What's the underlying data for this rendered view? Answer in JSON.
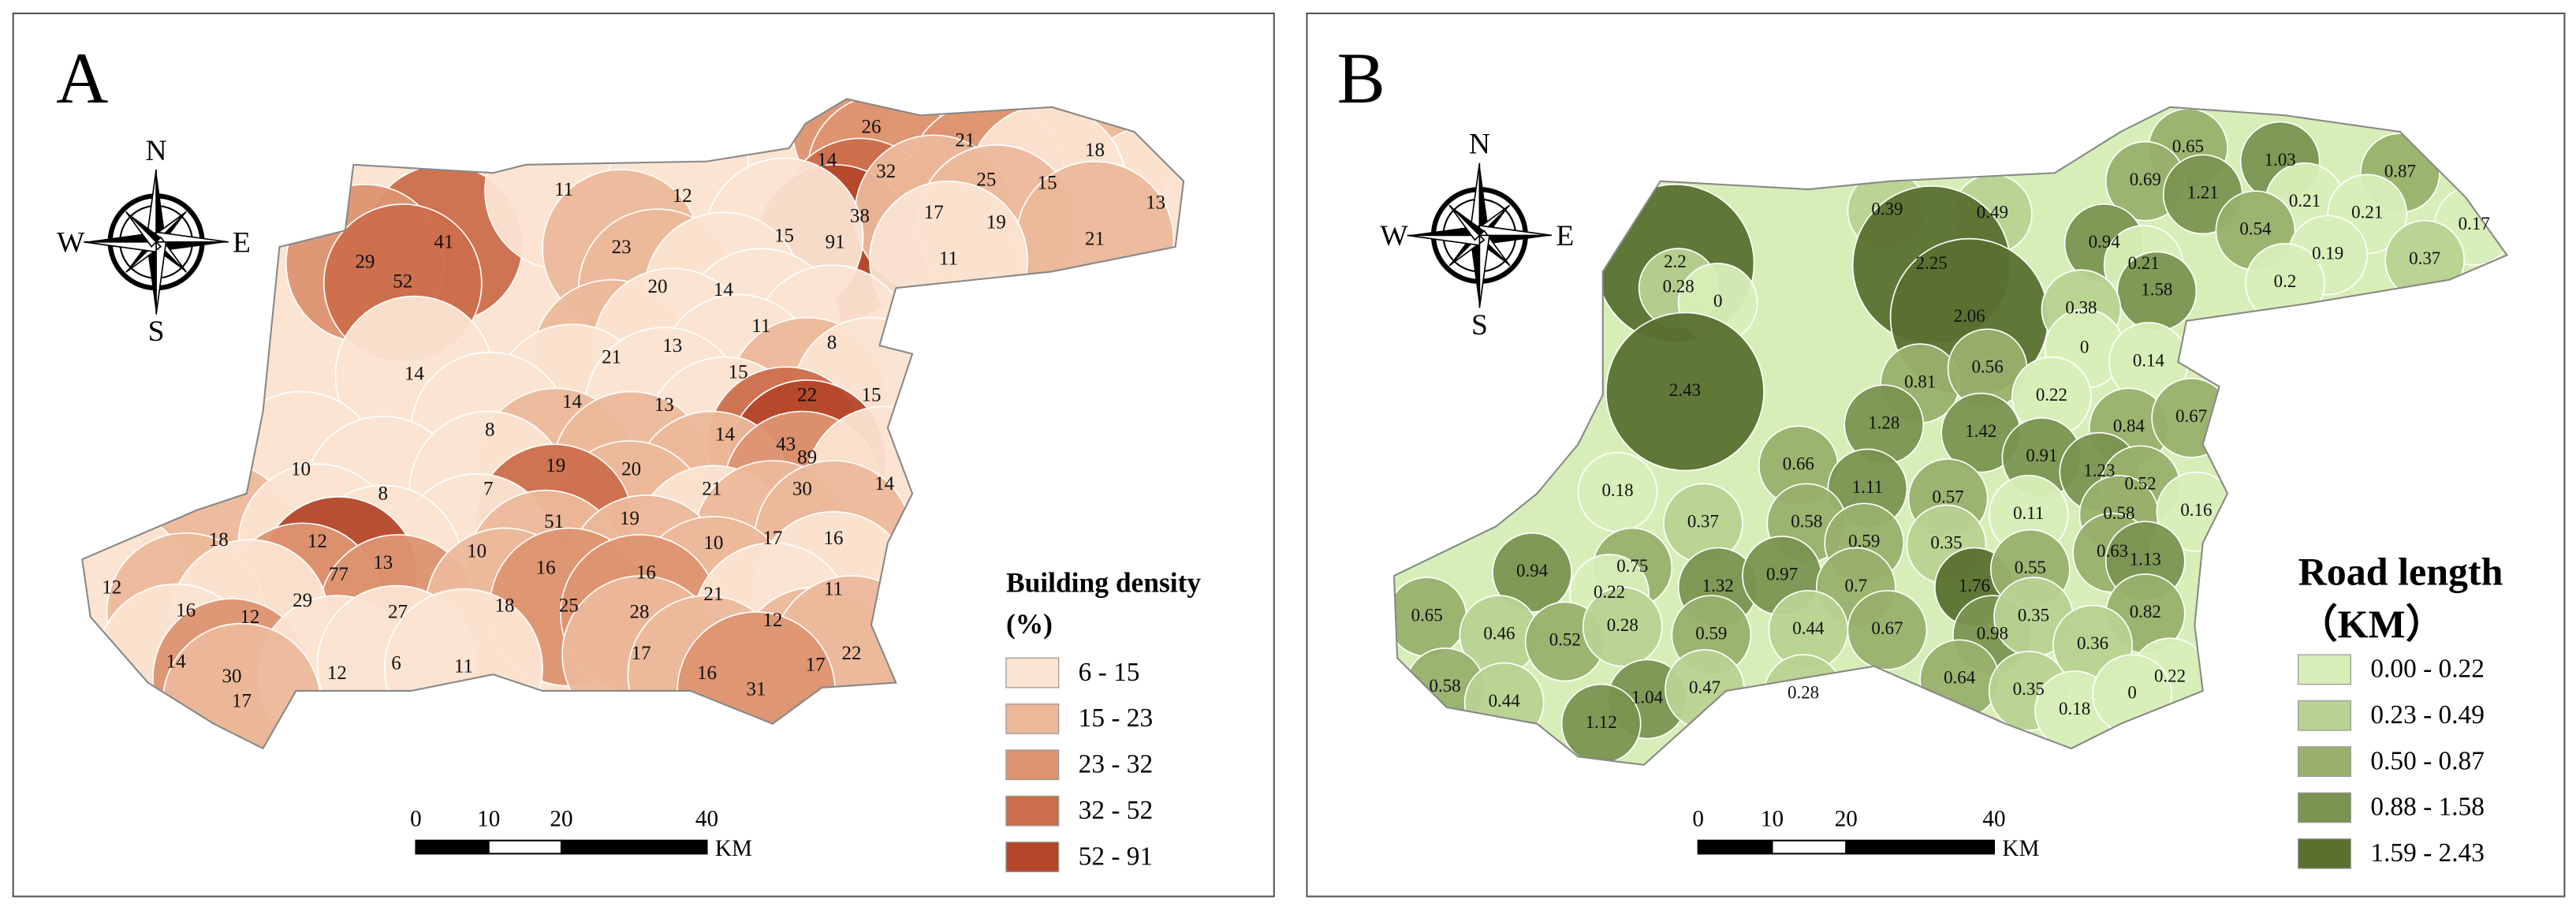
{
  "panels": [
    {
      "label": "A",
      "compass": {
        "n": "N",
        "s": "S",
        "w": "W",
        "e": "E"
      },
      "regions": [
        41,
        29,
        52,
        11,
        12,
        14,
        26,
        21,
        18,
        13,
        32,
        25,
        15,
        38,
        91,
        17,
        19,
        21,
        15,
        23,
        11,
        20,
        14,
        11,
        8,
        14,
        21,
        13,
        15,
        22,
        15,
        14,
        13,
        8,
        14,
        43,
        89,
        10,
        19,
        20,
        21,
        30,
        14,
        8,
        7,
        19,
        51,
        18,
        12,
        10,
        10,
        17,
        16,
        13,
        16,
        16,
        21,
        11,
        12,
        77,
        29,
        27,
        16,
        12,
        18,
        25,
        28,
        12,
        14,
        17,
        17,
        22,
        30,
        12,
        6,
        11,
        16,
        31,
        17
      ],
      "legend": {
        "title": "Building density",
        "unit": "(%)",
        "classes": [
          {
            "label": "6 - 15",
            "color": "#fbe4d2"
          },
          {
            "label": "15 - 23",
            "color": "#ecb89a"
          },
          {
            "label": "23 - 32",
            "color": "#dd9371"
          },
          {
            "label": "32 - 52",
            "color": "#cc6e4c"
          },
          {
            "label": "52 - 91",
            "color": "#b4472a"
          }
        ]
      },
      "scale": {
        "ticks": [
          0,
          10,
          20,
          40
        ],
        "unit": "KM"
      }
    },
    {
      "label": "B",
      "compass": {
        "n": "N",
        "s": "S",
        "w": "W",
        "e": "E"
      },
      "regions": [
        0.65,
        1.03,
        0.87,
        0.69,
        1.21,
        0.21,
        0.21,
        0.17,
        0.39,
        0.49,
        0.94,
        0.54,
        0.19,
        0.37,
        0.21,
        1.58,
        0.2,
        2.2,
        2.25,
        0.28,
        0,
        2.06,
        0.38,
        0,
        0.14,
        0.81,
        0.56,
        2.43,
        0.22,
        1.28,
        1.42,
        0.84,
        0.67,
        0.66,
        0.91,
        1.23,
        0.52,
        0.18,
        1.11,
        0.57,
        0.11,
        0.58,
        0.16,
        0.37,
        0.58,
        0.59,
        0.35,
        0.63,
        1.13,
        0.94,
        0.75,
        1.76,
        0.55,
        0.22,
        1.32,
        0.97,
        0.7,
        0.65,
        0.46,
        0.52,
        0.28,
        0.59,
        0.44,
        0.67,
        0.98,
        0.35,
        0.82,
        0.36,
        0.58,
        0.44,
        1.04,
        0.47,
        0.28,
        0.64,
        0.35,
        0.22,
        0.18,
        0,
        1.12
      ],
      "legend": {
        "title": "Road length",
        "unit": "（KM）",
        "classes": [
          {
            "label": "0.00 - 0.22",
            "color": "#d8eeb8"
          },
          {
            "label": "0.23 - 0.49",
            "color": "#b8d291"
          },
          {
            "label": "0.50 - 0.87",
            "color": "#98b06c"
          },
          {
            "label": "0.88 - 1.58",
            "color": "#7a9350"
          },
          {
            "label": "1.59 - 2.43",
            "color": "#59702f"
          }
        ]
      },
      "scale": {
        "ticks": [
          0,
          10,
          20,
          40
        ],
        "unit": "KM"
      }
    }
  ]
}
